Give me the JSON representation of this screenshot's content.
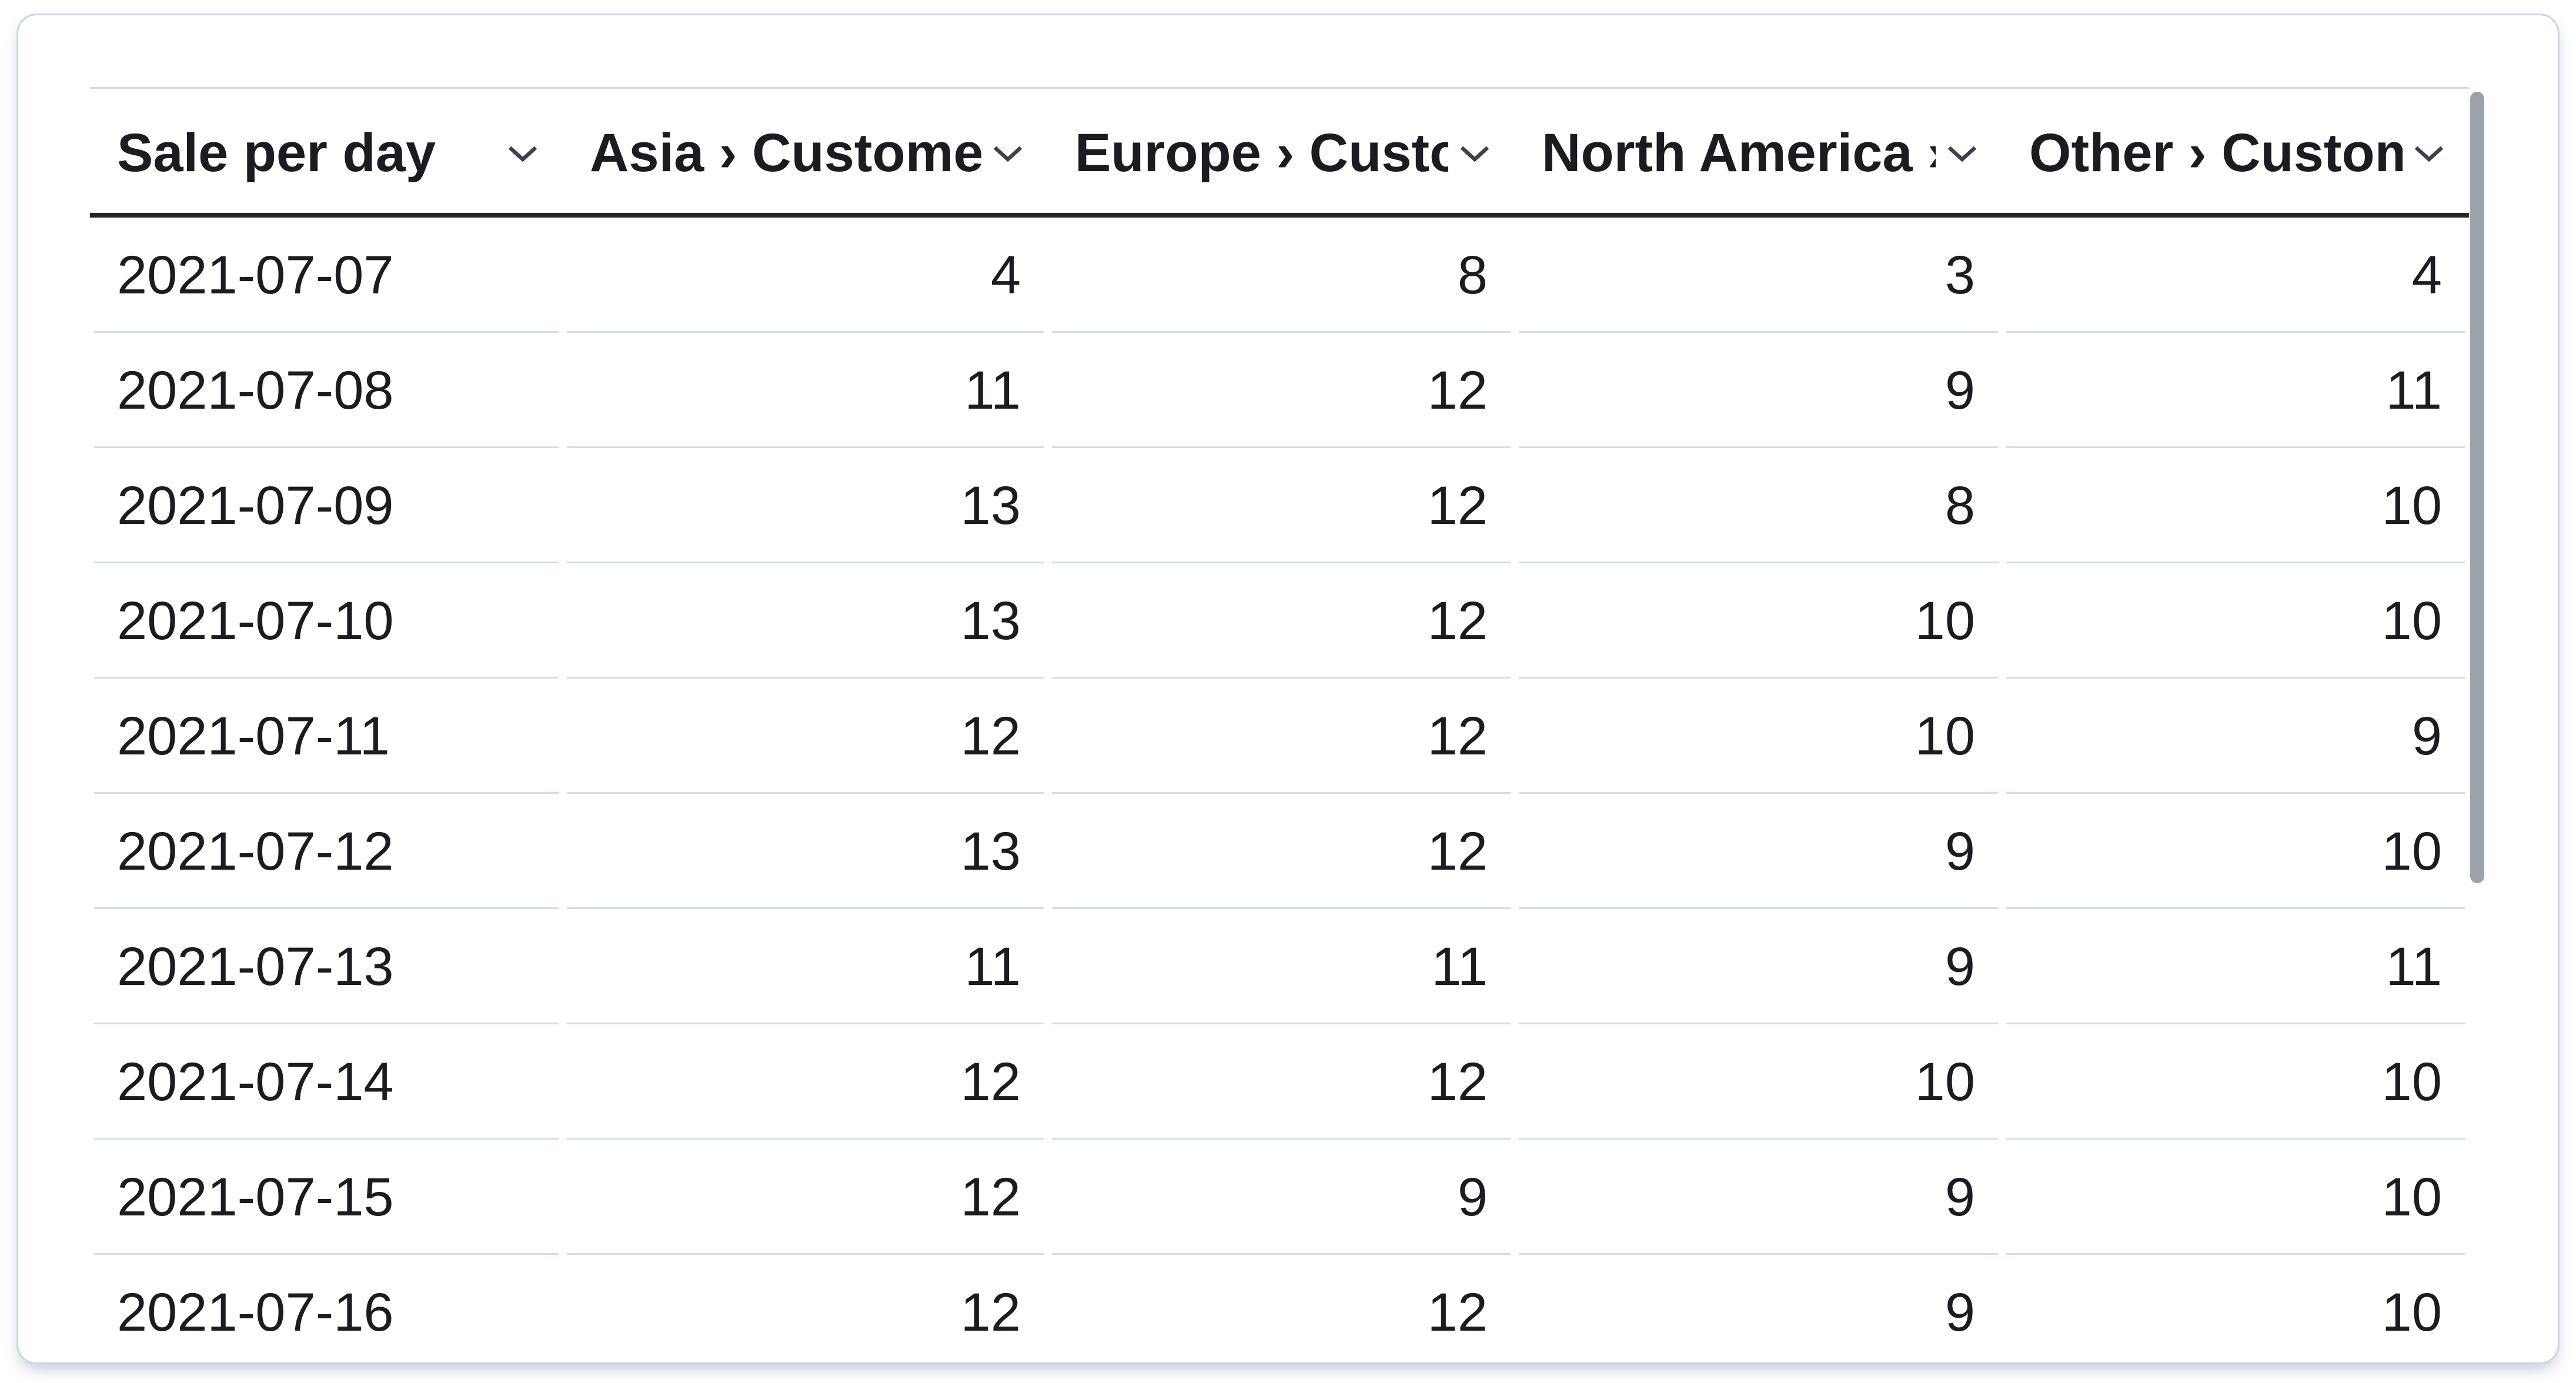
{
  "table": {
    "columns": [
      {
        "label": "Sale per day",
        "align": "left"
      },
      {
        "label": "Asia › Customers",
        "align": "right"
      },
      {
        "label": "Europe › Customers",
        "align": "right"
      },
      {
        "label": "North America › Customers",
        "align": "right"
      },
      {
        "label": "Other › Customers",
        "align": "right"
      }
    ],
    "rows": [
      [
        "2021-07-07",
        "4",
        "8",
        "3",
        "4"
      ],
      [
        "2021-07-08",
        "11",
        "12",
        "9",
        "11"
      ],
      [
        "2021-07-09",
        "13",
        "12",
        "8",
        "10"
      ],
      [
        "2021-07-10",
        "13",
        "12",
        "10",
        "10"
      ],
      [
        "2021-07-11",
        "12",
        "12",
        "10",
        "9"
      ],
      [
        "2021-07-12",
        "13",
        "12",
        "9",
        "10"
      ],
      [
        "2021-07-13",
        "11",
        "11",
        "9",
        "11"
      ],
      [
        "2021-07-14",
        "12",
        "12",
        "10",
        "10"
      ],
      [
        "2021-07-15",
        "12",
        "9",
        "9",
        "10"
      ],
      [
        "2021-07-16",
        "12",
        "12",
        "9",
        "10"
      ]
    ]
  },
  "icons": {
    "header_action": "chevron-down-icon"
  },
  "colors": {
    "text": "#1a1c21",
    "card_border": "#ccd6e3",
    "row_separator": "#d6dce8",
    "header_underline": "#23262d",
    "scrollbar_thumb": "#9da1a9"
  }
}
